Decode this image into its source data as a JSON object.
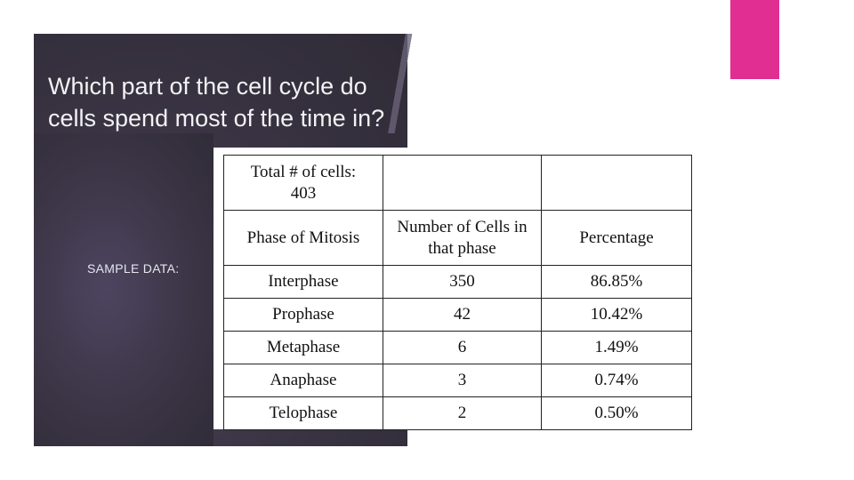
{
  "slide": {
    "title_line1": "Which part of the cell cycle do",
    "title_line2": "cells spend most of the time in?",
    "sample_label": "SAMPLE DATA:",
    "accent_color": "#e02e93",
    "panel_color": "#3a3444"
  },
  "table": {
    "total_line1": "Total # of cells:",
    "total_line2": "403",
    "headers": [
      "Phase of Mitosis",
      "Number of Cells in that phase",
      "Percentage"
    ],
    "rows": [
      {
        "phase": "Interphase",
        "count": "350",
        "percent": "86.85%"
      },
      {
        "phase": "Prophase",
        "count": "42",
        "percent": "10.42%"
      },
      {
        "phase": "Metaphase",
        "count": "6",
        "percent": "1.49%"
      },
      {
        "phase": "Anaphase",
        "count": "3",
        "percent": "0.74%"
      },
      {
        "phase": "Telophase",
        "count": "2",
        "percent": "0.50%"
      }
    ]
  }
}
